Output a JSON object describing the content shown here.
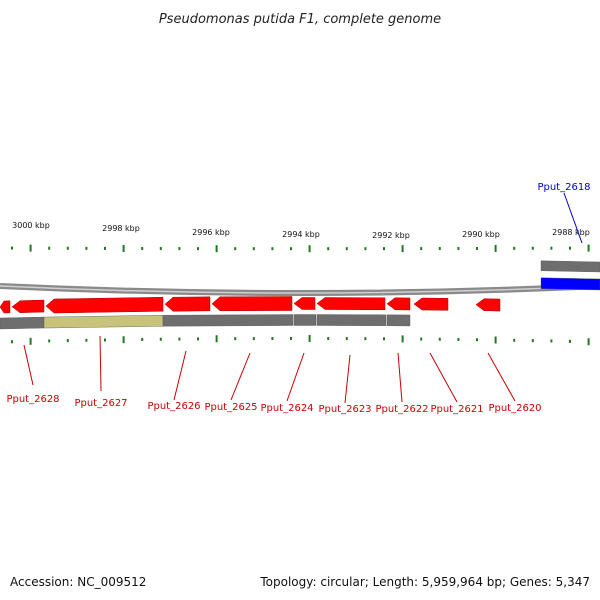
{
  "title": "Pseudomonas putida F1, complete genome",
  "footer": {
    "accession": "Accession: NC_009512",
    "summary": "Topology: circular; Length: 5,959,964 bp; Genes: 5,347"
  },
  "colors": {
    "background": "#ffffff",
    "backbone": "#8a8a8a",
    "cds_track": "#6e6e6e",
    "highlight_segment": "#c9c27a",
    "gene_reverse": "#ff0000",
    "gene_forward": "#0000ff",
    "tick": "#1f7a1f",
    "label_reverse": "#cc0000",
    "label_forward": "#0000cc"
  },
  "scale_labels": [
    "3000 kbp",
    "2998 kbp",
    "2996 kbp",
    "2994 kbp",
    "2992 kbp",
    "2990 kbp",
    "2988 kbp"
  ],
  "genes": [
    {
      "name": "Pput_2628",
      "strand": "reverse",
      "color": "#cc0000"
    },
    {
      "name": "Pput_2627",
      "strand": "reverse",
      "color": "#cc0000"
    },
    {
      "name": "Pput_2626",
      "strand": "reverse",
      "color": "#cc0000"
    },
    {
      "name": "Pput_2625",
      "strand": "reverse",
      "color": "#cc0000"
    },
    {
      "name": "Pput_2624",
      "strand": "reverse",
      "color": "#cc0000"
    },
    {
      "name": "Pput_2623",
      "strand": "reverse",
      "color": "#cc0000"
    },
    {
      "name": "Pput_2622",
      "strand": "reverse",
      "color": "#cc0000"
    },
    {
      "name": "Pput_2621",
      "strand": "reverse",
      "color": "#cc0000"
    },
    {
      "name": "Pput_2620",
      "strand": "reverse",
      "color": "#cc0000"
    },
    {
      "name": "Pput_2618",
      "strand": "forward",
      "color": "#0000cc"
    }
  ]
}
